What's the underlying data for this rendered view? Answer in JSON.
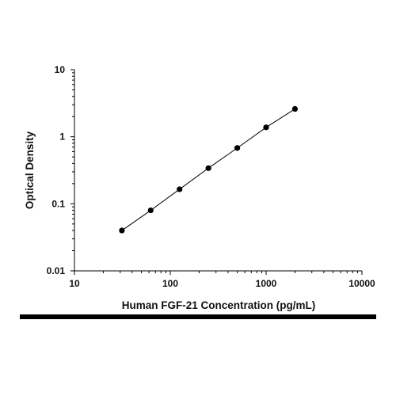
{
  "chart_data": {
    "type": "scatter",
    "title": "",
    "xlabel": "Human FGF-21 Concentration (pg/mL)",
    "ylabel": "Optical Density",
    "xscale": "log",
    "yscale": "log",
    "xlim": [
      10,
      10000
    ],
    "ylim": [
      0.01,
      10
    ],
    "x_ticks": [
      "10",
      "100",
      "1000",
      "10000"
    ],
    "y_ticks": [
      "0.01",
      "0.1",
      "1",
      "10"
    ],
    "grid": false,
    "legend": "none",
    "series": [
      {
        "x": [
          31.25,
          62.5,
          125,
          250,
          500,
          1000,
          2000
        ],
        "y": [
          0.04,
          0.08,
          0.165,
          0.34,
          0.68,
          1.38,
          2.6
        ],
        "fit_line": true
      }
    ],
    "colors": {
      "points": "#000000",
      "line": "#000000",
      "footer_bar": "#000000"
    }
  }
}
